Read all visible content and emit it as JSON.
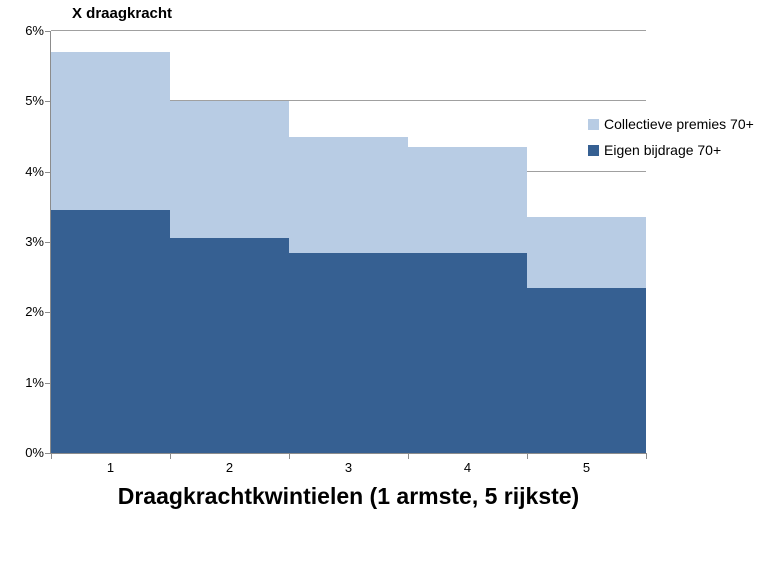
{
  "chart_title": "X draagkracht",
  "axis_title": "Draagkrachtkwintielen (1 armste, 5 rijkste)",
  "legend": {
    "items": [
      {
        "label": "Collectieve premies 70+",
        "color": "#b8cce4"
      },
      {
        "label": "Eigen bijdrage 70+",
        "color": "#366092"
      }
    ]
  },
  "chart_data": {
    "type": "bar",
    "stacked": true,
    "gap_width_percent": 0,
    "title": "X draagkracht",
    "xlabel": "Draagkrachtkwintielen (1 armste, 5 rijkste)",
    "ylabel": "",
    "categories": [
      "1",
      "2",
      "3",
      "4",
      "5"
    ],
    "series": [
      {
        "name": "Eigen bijdrage 70+",
        "color": "#366092",
        "values": [
          3.45,
          3.05,
          2.85,
          2.85,
          2.35
        ]
      },
      {
        "name": "Collectieve premies 70+",
        "color": "#b8cce4",
        "values": [
          2.25,
          1.95,
          1.65,
          1.5,
          1.0
        ]
      }
    ],
    "stack_totals": [
      5.7,
      5.0,
      4.5,
      4.35,
      3.35
    ],
    "ylim": [
      0,
      6
    ],
    "ytick_labels": [
      "0%",
      "1%",
      "2%",
      "3%",
      "4%",
      "5%",
      "6%"
    ],
    "grid": true,
    "legend_position": "right-inside"
  }
}
